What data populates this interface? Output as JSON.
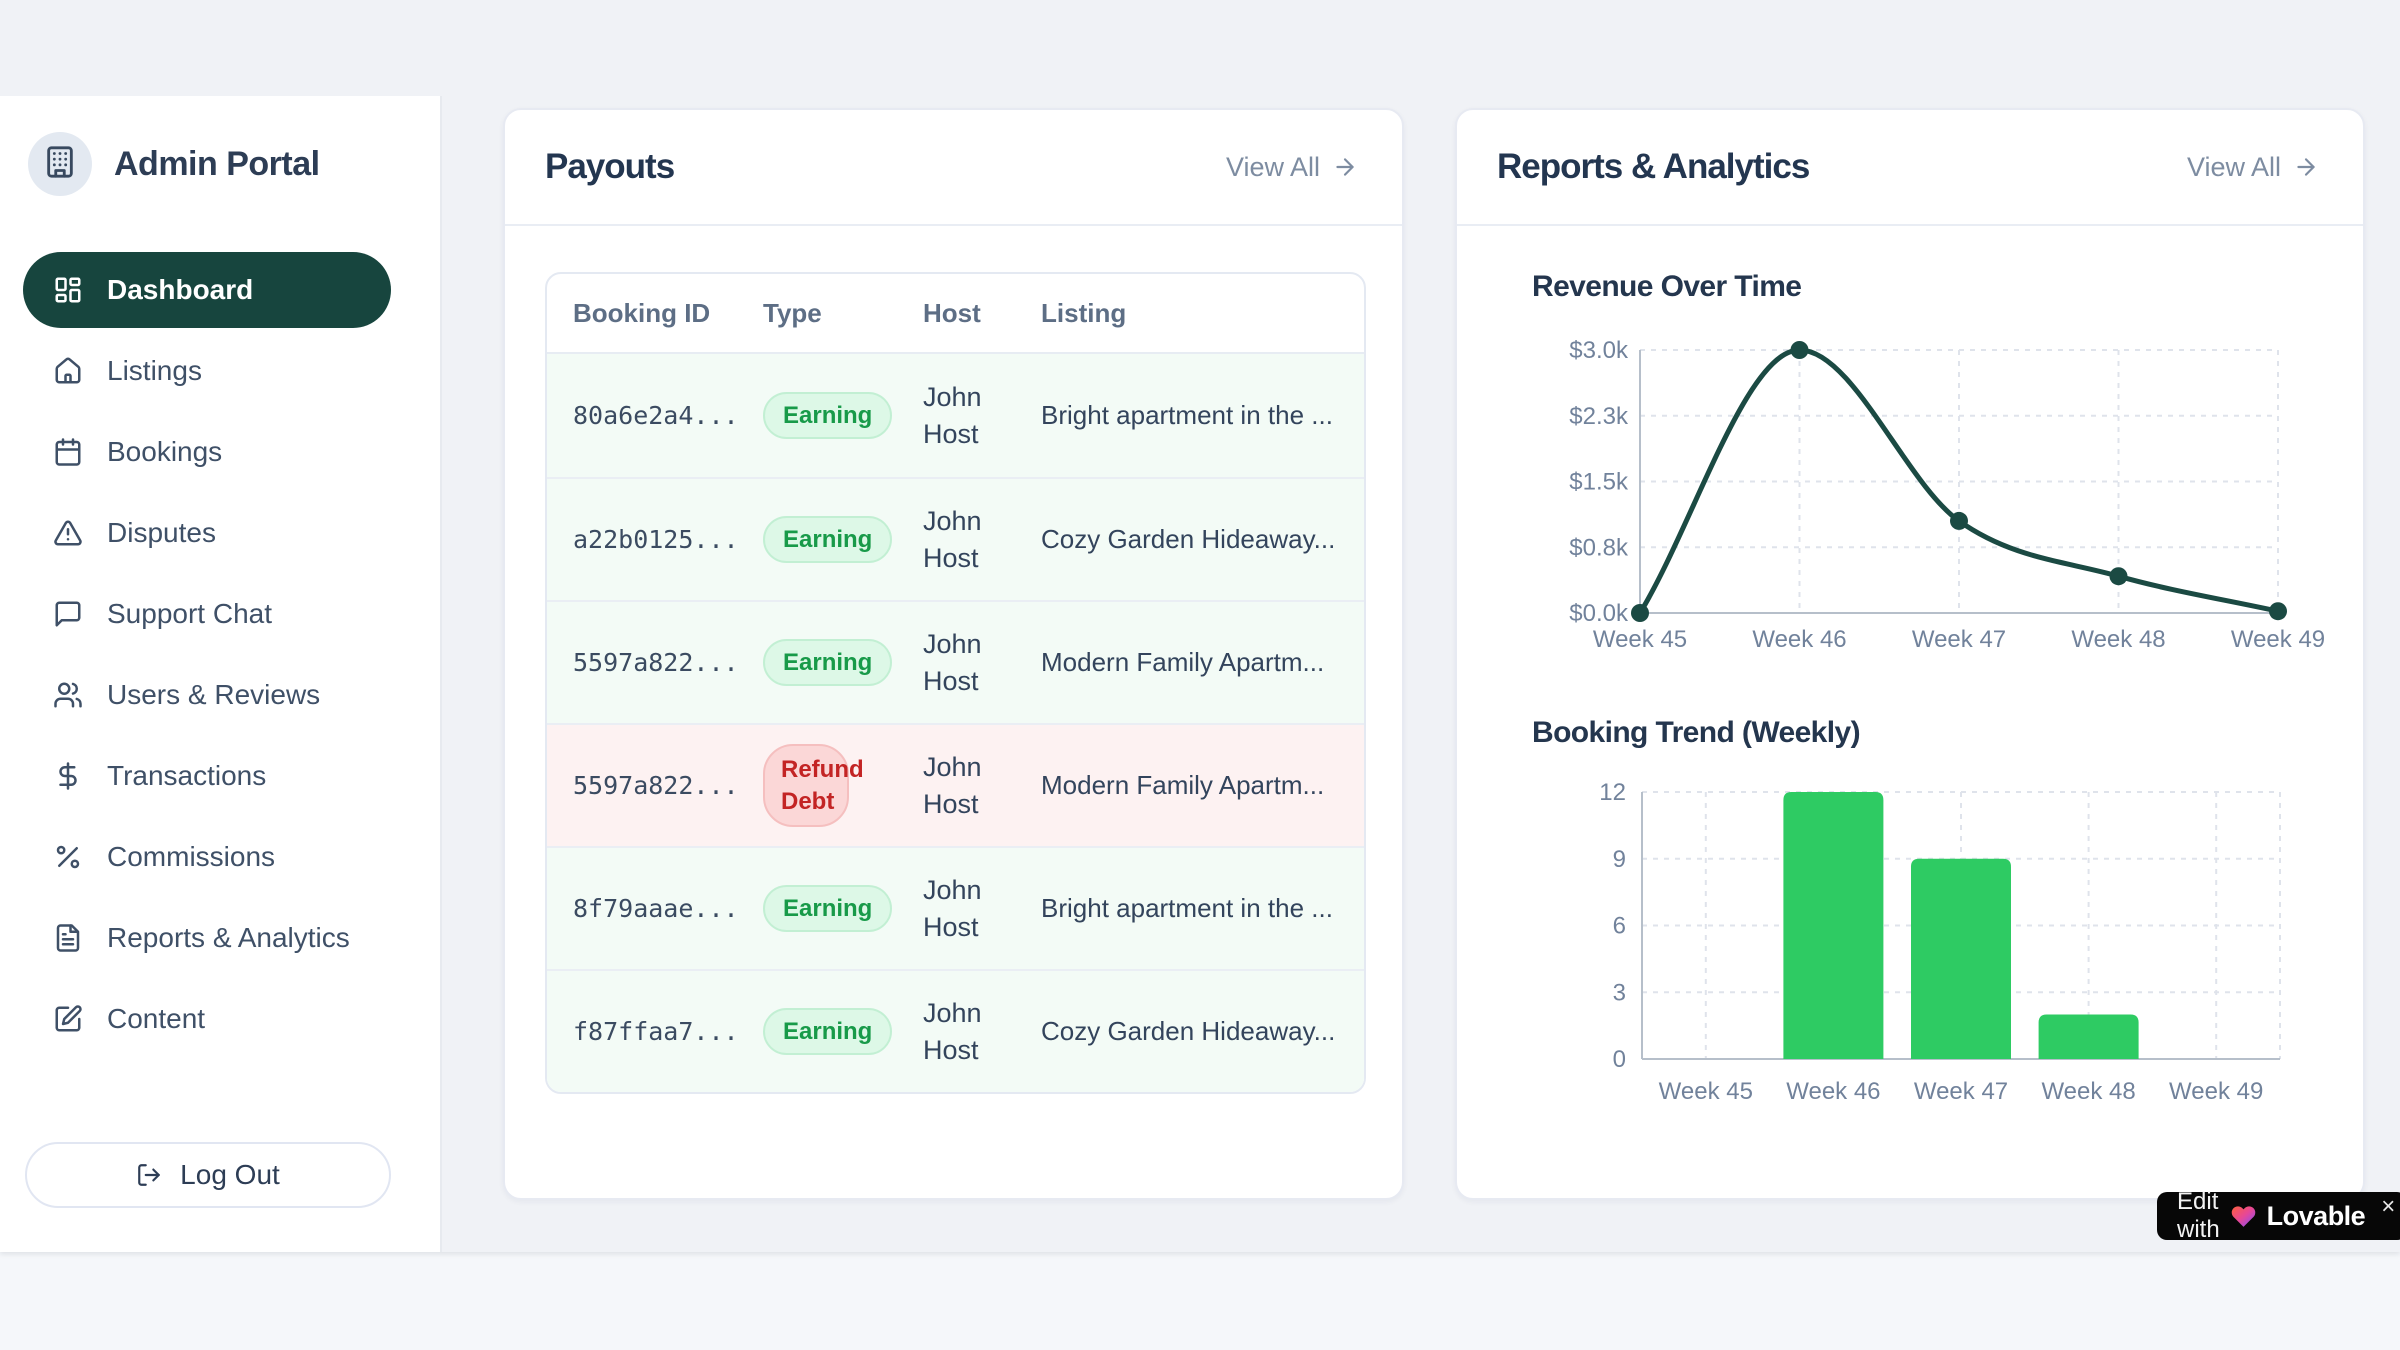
{
  "app": {
    "title": "Admin Portal"
  },
  "sidebar": {
    "items": [
      {
        "label": "Dashboard",
        "icon": "dashboard-icon",
        "active": true
      },
      {
        "label": "Listings",
        "icon": "home-icon",
        "active": false
      },
      {
        "label": "Bookings",
        "icon": "calendar-icon",
        "active": false
      },
      {
        "label": "Disputes",
        "icon": "alert-triangle-icon",
        "active": false
      },
      {
        "label": "Support Chat",
        "icon": "chat-icon",
        "active": false
      },
      {
        "label": "Users & Reviews",
        "icon": "users-icon",
        "active": false
      },
      {
        "label": "Transactions",
        "icon": "dollar-icon",
        "active": false
      },
      {
        "label": "Commissions",
        "icon": "percent-icon",
        "active": false
      },
      {
        "label": "Reports & Analytics",
        "icon": "file-text-icon",
        "active": false
      },
      {
        "label": "Content",
        "icon": "file-edit-icon",
        "active": false
      }
    ],
    "logout_label": "Log Out"
  },
  "payouts": {
    "title": "Payouts",
    "view_all_label": "View All",
    "columns": [
      "Booking ID",
      "Type",
      "Host",
      "Listing"
    ],
    "rows": [
      {
        "booking_id": "80a6e2a4...",
        "type": "Earning",
        "type_variant": "earning",
        "host": "John Host",
        "listing": "Bright apartment in the ..."
      },
      {
        "booking_id": "a22b0125...",
        "type": "Earning",
        "type_variant": "earning",
        "host": "John Host",
        "listing": "Cozy Garden Hideaway..."
      },
      {
        "booking_id": "5597a822...",
        "type": "Earning",
        "type_variant": "earning",
        "host": "John Host",
        "listing": "Modern Family Apartm..."
      },
      {
        "booking_id": "5597a822...",
        "type": "Refund Debt",
        "type_variant": "refund",
        "host": "John Host",
        "listing": "Modern Family Apartm..."
      },
      {
        "booking_id": "8f79aaae...",
        "type": "Earning",
        "type_variant": "earning",
        "host": "John Host",
        "listing": "Bright apartment in the ..."
      },
      {
        "booking_id": "f87ffaa7...",
        "type": "Earning",
        "type_variant": "earning",
        "host": "John Host",
        "listing": "Cozy Garden Hideaway..."
      }
    ]
  },
  "reports": {
    "title": "Reports & Analytics",
    "view_all_label": "View All"
  },
  "chart_data": [
    {
      "type": "line",
      "title": "Revenue Over Time",
      "x": [
        "Week 45",
        "Week 46",
        "Week 47",
        "Week 48",
        "Week 49"
      ],
      "series": [
        {
          "name": "Revenue",
          "values": [
            0,
            3000,
            1050,
            420,
            20
          ]
        }
      ],
      "y_tick_labels": [
        "$3.0k",
        "$2.3k",
        "$1.5k",
        "$0.8k",
        "$0.0k"
      ],
      "ylim": [
        0,
        3000
      ],
      "grid": true,
      "legend": false,
      "line_color": "#1b4a43",
      "curve": "monotone"
    },
    {
      "type": "bar",
      "title": "Booking Trend (Weekly)",
      "categories": [
        "Week 45",
        "Week 46",
        "Week 47",
        "Week 48",
        "Week 49"
      ],
      "values": [
        0,
        12,
        9,
        2,
        0
      ],
      "y_ticks": [
        0,
        3,
        6,
        9,
        12
      ],
      "ylim": [
        0,
        12
      ],
      "grid": true,
      "legend": false,
      "bar_color": "#2ecb63"
    }
  ],
  "badge": {
    "prefix": "Edit with",
    "brand": "Lovable",
    "close": "×"
  },
  "colors": {
    "accent_dark_teal": "#17453e",
    "earning_text": "#189a49",
    "earning_bg": "#ddf8e7",
    "refund_text": "#c32424",
    "refund_bg": "#fbd7d7",
    "bar_green": "#2ecb63",
    "axis_text": "#71829b",
    "grid_line": "#dfe3eb",
    "axis_line": "#b6bfca"
  }
}
